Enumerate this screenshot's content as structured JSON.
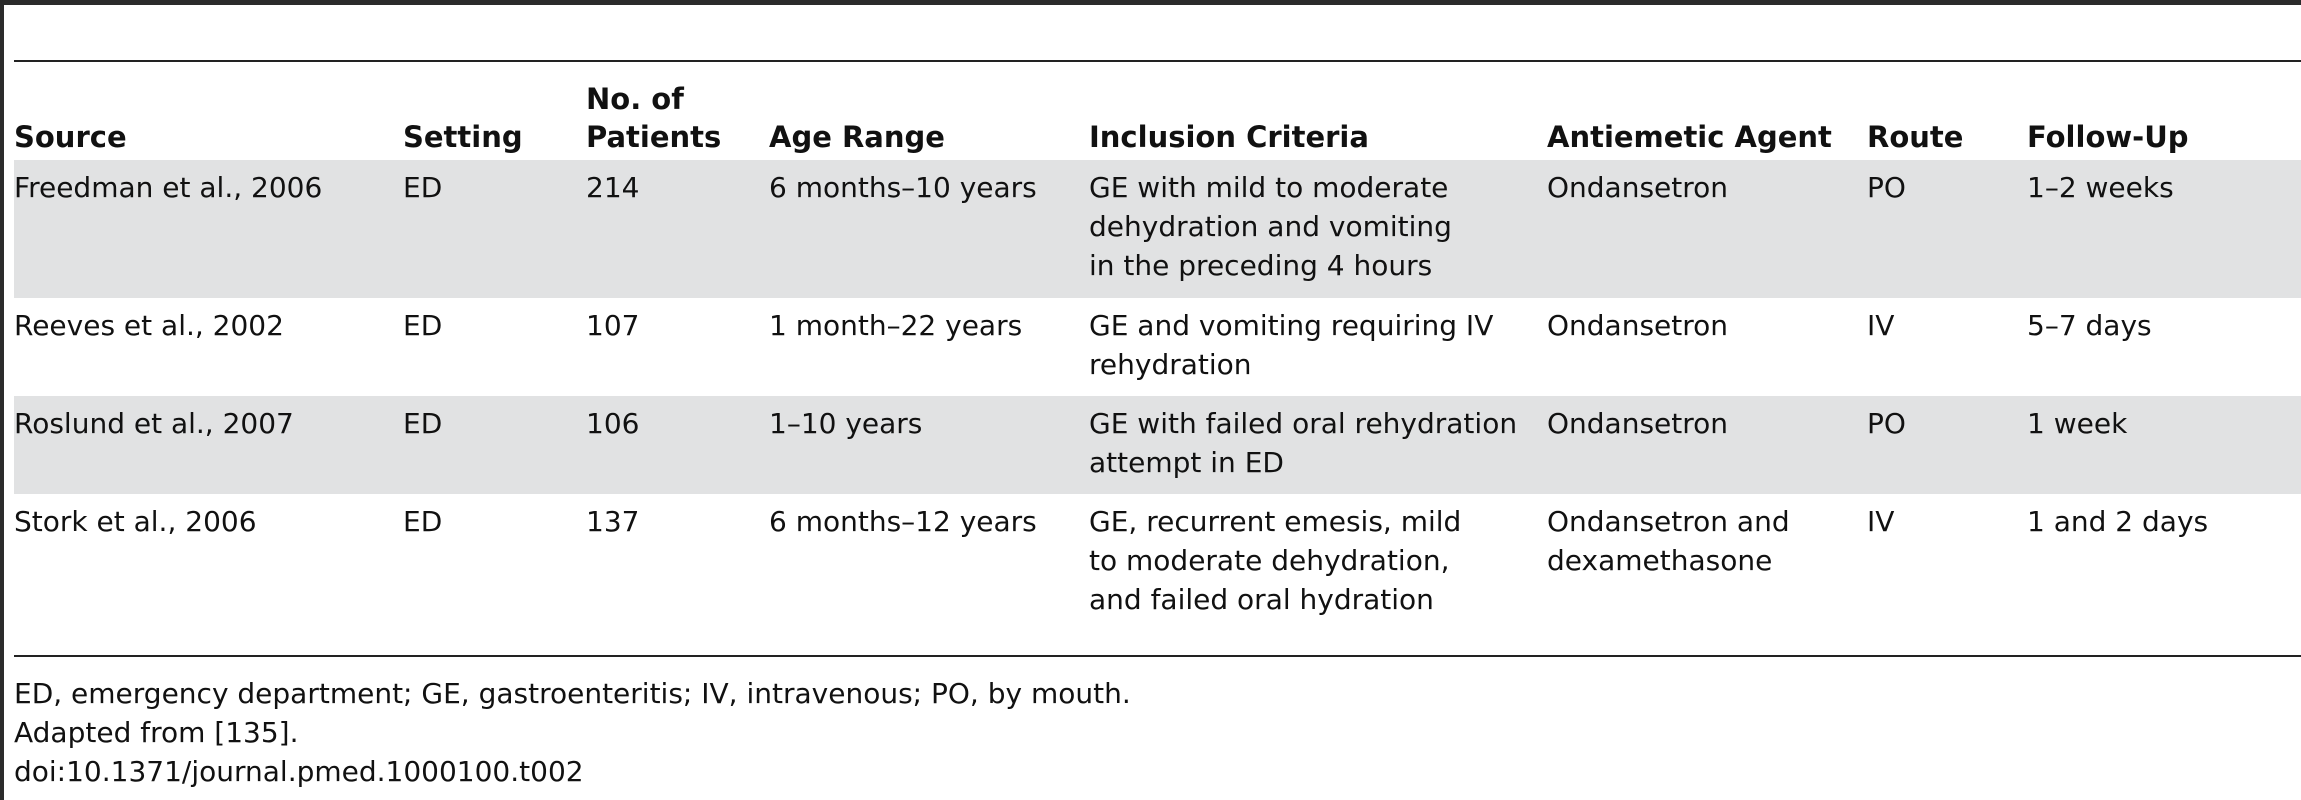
{
  "table": {
    "headers": [
      "Source",
      "Setting",
      "No. of\nPatients",
      "Age Range",
      "Inclusion Criteria",
      "Antiemetic Agent",
      "Route",
      "Follow-Up"
    ],
    "rows": [
      [
        "Freedman et al., 2006",
        "ED",
        "214",
        "6 months–10 years",
        "GE with mild to moderate\ndehydration and vomiting\nin the preceding 4 hours",
        "Ondansetron",
        "PO",
        "1–2 weeks"
      ],
      [
        "Reeves et al., 2002",
        "ED",
        "107",
        "1 month–22 years",
        "GE and vomiting requiring IV\nrehydration",
        "Ondansetron",
        "IV",
        "5–7 days"
      ],
      [
        "Roslund et al., 2007",
        "ED",
        "106",
        "1–10 years",
        "GE with failed oral rehydration\nattempt in ED",
        "Ondansetron",
        "PO",
        "1 week"
      ],
      [
        "Stork et al., 2006",
        "ED",
        "137",
        "6 months–12 years",
        "GE, recurrent emesis, mild\nto moderate dehydration,\nand failed oral hydration",
        "Ondansetron and\ndexamethasone",
        "IV",
        "1 and 2 days"
      ]
    ]
  },
  "footnotes": {
    "abbreviations": "ED, emergency department; GE, gastroenteritis; IV, intravenous; PO, by mouth.",
    "adapted": "Adapted from [135].",
    "doi": "doi:10.1371/journal.pmed.1000100.t002"
  }
}
